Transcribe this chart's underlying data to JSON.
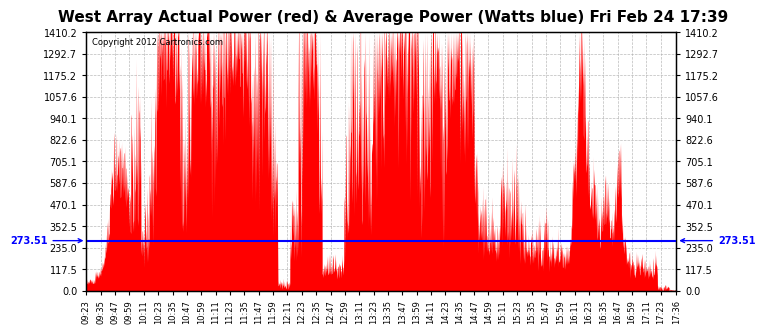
{
  "title": "West Array Actual Power (red) & Average Power (Watts blue) Fri Feb 24 17:39",
  "copyright": "Copyright 2012 Cartronics.com",
  "ymin": 0.0,
  "ymax": 1410.2,
  "yticks": [
    0.0,
    117.5,
    235.0,
    352.5,
    470.1,
    587.6,
    705.1,
    822.6,
    940.1,
    1057.6,
    1175.2,
    1292.7,
    1410.2
  ],
  "avg_power": 273.51,
  "avg_label": "273.51",
  "line_color": "blue",
  "fill_color": "red",
  "background_color": "#ffffff",
  "grid_color": "#aaaaaa",
  "title_fontsize": 11,
  "xtick_labels": [
    "09:23",
    "09:35",
    "09:47",
    "09:59",
    "10:11",
    "10:23",
    "10:35",
    "10:47",
    "10:59",
    "11:11",
    "11:23",
    "11:35",
    "11:47",
    "11:59",
    "12:11",
    "12:23",
    "12:35",
    "12:47",
    "12:59",
    "13:11",
    "13:23",
    "13:35",
    "13:47",
    "13:59",
    "14:11",
    "14:23",
    "14:35",
    "14:47",
    "14:59",
    "15:11",
    "15:23",
    "15:35",
    "15:47",
    "15:59",
    "16:11",
    "16:23",
    "16:35",
    "16:47",
    "16:59",
    "17:11",
    "17:23",
    "17:36"
  ]
}
